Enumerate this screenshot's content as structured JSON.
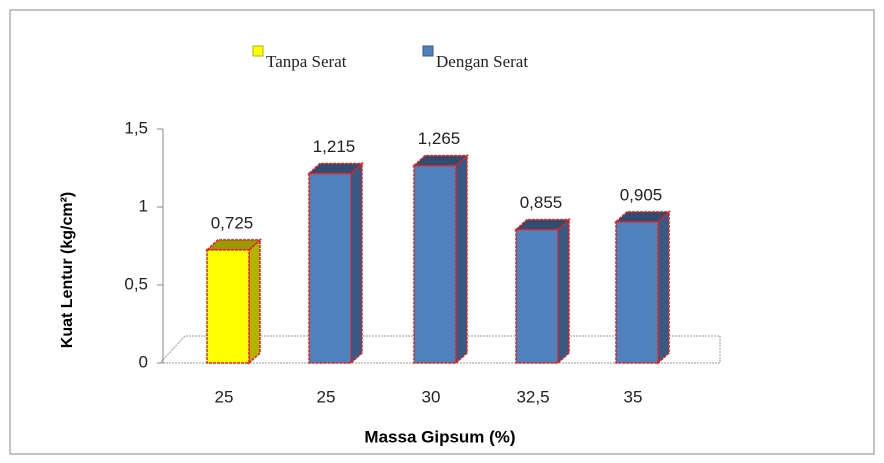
{
  "chart_data": {
    "type": "bar",
    "y_label": "Kuat Lentur (kg/cm²)",
    "x_label": "Massa Gipsum (%)",
    "categories": [
      "25",
      "25",
      "30",
      "32,5",
      "35"
    ],
    "series": [
      {
        "name": "Tanpa Serat",
        "color": "#ffff00",
        "values": [
          0.725,
          null,
          null,
          null,
          null
        ],
        "value_labels": [
          "0,725",
          null,
          null,
          null,
          null
        ]
      },
      {
        "name": "Dengan Serat",
        "color": "#4f81bd",
        "values": [
          null,
          1.215,
          1.265,
          0.855,
          0.905
        ],
        "value_labels": [
          null,
          "1,215",
          "1,265",
          "0,855",
          "0,905"
        ]
      }
    ],
    "ylim": [
      0,
      1.5
    ],
    "yticks": [
      0,
      {
        "value": 0.5,
        "label": "0,5"
      },
      1,
      {
        "value": 1.5,
        "label": "1,5"
      }
    ],
    "legend": "top"
  }
}
